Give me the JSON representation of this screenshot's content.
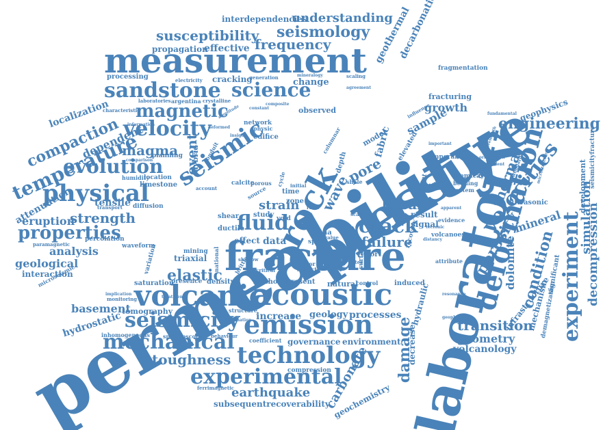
{
  "accent_color": "#4a83b9",
  "words": {
    "permeability": "permeability",
    "laboratory": "laboratory",
    "pressure": "pressure",
    "fracture": "fracture",
    "measurement": "measurement",
    "rock": "rock",
    "acoustic": "acoustic",
    "volcanic": "volcanic",
    "deformation": "deformation",
    "emission": "emission",
    "technology": "technology",
    "seismicity": "seismicity",
    "experimental": "experimental",
    "mechanical": "mechanical",
    "physical": "physical",
    "experiment": "experiment",
    "velocities": "velocities",
    "seismic": "seismic",
    "velocity": "velocity",
    "sandstone": "sandstone",
    "science": "science",
    "magnetic": "magnetic",
    "temperature": "temperature",
    "evolution": "evolution",
    "compaction": "compaction",
    "properties": "properties",
    "crack": "crack",
    "fluid": "fluid",
    "damage": "damage",
    "engineering": "engineering",
    "seismology": "seismology",
    "susceptibility": "susceptibility",
    "frequency": "frequency",
    "understanding": "understanding",
    "failure": "failure",
    "elastic": "elastic",
    "strength": "strength",
    "basalt": "basalt",
    "strain": "strain",
    "condition": "condition",
    "thermal": "thermal",
    "porosity": "porosity",
    "transition": "transition",
    "geometry": "geometry",
    "volcanology": "volcanology",
    "earthquake": "earthquake",
    "toughness": "toughness",
    "carbonate": "carbonate",
    "decompression": "decompression",
    "simulation": "simulation",
    "dolomite": "dolomite",
    "geothermal": "geothermal",
    "decarbonation": "decarbonation",
    "magma": "magma",
    "event": "event",
    "pore": "pore",
    "wave": "wave",
    "sample": "sample",
    "growth": "growth",
    "analysis": "analysis",
    "attenuation": "attenuation",
    "eruption": "eruption",
    "basement": "basement",
    "hydrostatic": "hydrostatic",
    "geological": "geological",
    "interaction": "interaction",
    "localization": "localization",
    "dependent": "dependent",
    "tensile": "tensile",
    "mineral": "mineral",
    "fabric": "fabric",
    "tomography": "tomography",
    "processes": "processes",
    "increase": "increase",
    "geology": "geology",
    "environment": "environment",
    "governance": "governance",
    "compression": "compression",
    "subsequentrecoverability": "subsequentrecoverability",
    "geochemistry": "geochemistry",
    "infrastructure": "infrastructure",
    "mechanism": "mechanism",
    "geophysics": "geophysics",
    "interdependencies": "interdependencies",
    "propagation": "propagation",
    "effective": "effective",
    "change": "change",
    "cracking": "cracking",
    "processing": "processing",
    "fracturing": "fracturing",
    "fragmentation": "fragmentation",
    "observed": "observed",
    "report": "report",
    "result": "result",
    "signal": "signal",
    "effect": "effect",
    "data": "data",
    "triaxial": "triaxial",
    "density": "density",
    "method": "method",
    "present": "present",
    "natural": "natural",
    "induced": "induced",
    "hydraulic": "hydraulic",
    "decrease": "decrease",
    "granite": "granite",
    "development": "development",
    "seismicityfracture": "seismicityfracture",
    "significant": "significant",
    "demagnetization": "demagnetization",
    "ultrasonic": "ultrasonic",
    "saturation": "saturation",
    "percolation": "percolation",
    "limestone": "limestone",
    "diffusion": "diffusion",
    "planning": "planning",
    "calcite": "calcite",
    "zone": "zone",
    "time": "time",
    "study": "study",
    "shear": "shear",
    "ductile": "ductile",
    "etna": "etna",
    "space": "space",
    "mining": "mining",
    "presence": "presence",
    "network": "network",
    "edifice": "edifice",
    "hybrid": "hybrid",
    "model": "model",
    "temporal": "temporal",
    "volcanoes": "volcanoes",
    "spectral": "spectral",
    "evidence": "evidence",
    "attribute": "attribute",
    "recovery": "recovery",
    "different": "different",
    "elevated": "elevated",
    "chemical": "chemical",
    "bedding": "bedding",
    "system": "system",
    "location": "location",
    "humidity": "humidity",
    "structure": "structure",
    "coefficient": "coefficient",
    "spectroscopy": "spectroscopy",
    "behaviour": "behaviour",
    "inhomogeneous": "inhomogeneous",
    "waveform": "waveform",
    "variation": "variation",
    "paramagnetic": "paramagnetic",
    "microseismic": "microseismic",
    "implication": "implication",
    "monitoring": "monitoring",
    "transport": "transport",
    "ferrimagnetic": "ferrimagnetic",
    "argentina": "argentina",
    "laboratories": "laboratories",
    "characteristic": "characteristic",
    "electricity": "electricity",
    "crystalline": "crystalline",
    "information": "information",
    "deformed": "deformed",
    "generation": "generation",
    "mineralogy": "mineralogy",
    "composite": "composite",
    "constant": "constant",
    "physic": "physic",
    "insight": "insight",
    "void": "void",
    "water": "water",
    "surface": "surface",
    "factor": "factor",
    "aspect": "aspect",
    "control": "control",
    "brittle": "brittle",
    "critical": "critical",
    "national": "national",
    "receiver": "receiver",
    "scaling": "scaling",
    "resonance": "resonance",
    "geophysical": "geophysical",
    "crabwoodard": "crabwoodard",
    "microstructural": "microstructural",
    "orientation": "orientation",
    "equivalent": "equivalent",
    "important": "important",
    "fundamental": "fundamental",
    "wavelength": "wavelength",
    "apparent": "apparent",
    "influence": "influence",
    "agreement": "agreement",
    "distancy": "distancy",
    "treatment": "treatment",
    "formation": "formation",
    "account": "account",
    "cycle": "cycle",
    "shale": "shale",
    "depth": "depth",
    "ratio": "ratio",
    "scale": "scale",
    "initial": "initial",
    "source": "source",
    "porous": "porous",
    "tectonic": "tectonic",
    "amplitude": "amplitude",
    "columnar": "columnar",
    "comparison": "comparison",
    "conduit": "conduit",
    "shallow": "shallow",
    "value": "value"
  }
}
